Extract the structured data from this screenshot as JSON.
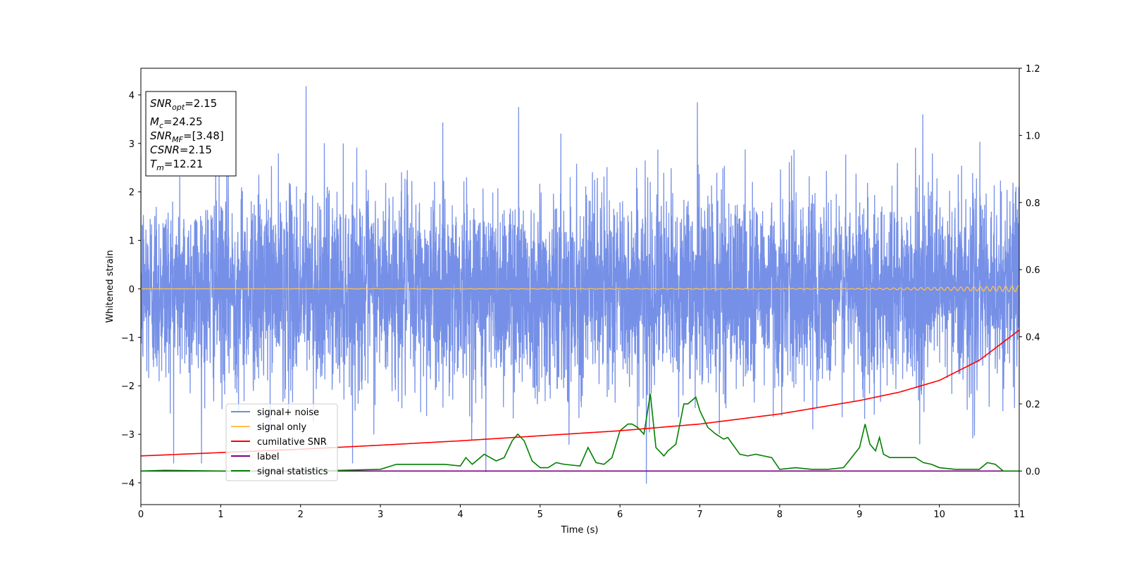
{
  "chart_data": {
    "type": "line",
    "xlabel": "Time (s)",
    "ylabel": "Whitened strain",
    "xlim": [
      0,
      11
    ],
    "ylim_left": [
      -4.45,
      4.55
    ],
    "ylim_right": [
      -0.1,
      1.2
    ],
    "xticks": [
      "0",
      "1",
      "2",
      "3",
      "4",
      "5",
      "6",
      "7",
      "8",
      "9",
      "10",
      "11"
    ],
    "yticks_left": [
      "4",
      "3",
      "2",
      "1",
      "0",
      "−1",
      "−2",
      "−3",
      "−4"
    ],
    "yticks_right": [
      "1.2",
      "1.0",
      "0.8",
      "0.6",
      "0.4",
      "0.2",
      "0.0"
    ],
    "info_box": {
      "snr_opt": {
        "base": "SNR",
        "sub": "opt",
        "value": "=2.15"
      },
      "mc": {
        "base": "M",
        "sub": "c",
        "value": "=24.25"
      },
      "snr_mf": {
        "base": "SNR",
        "sub": "MF",
        "value": "=[3.48]"
      },
      "csnr": {
        "base": "CSNR",
        "sub": "",
        "value": "=2.15"
      },
      "tm": {
        "base": "T",
        "sub": "m",
        "value": "=12.21"
      }
    },
    "legend": {
      "placement": "lower-left",
      "entries": [
        {
          "label": "signal+ noise",
          "color": "#6f8ae6"
        },
        {
          "label": "signal only",
          "color": "#ffc04d"
        },
        {
          "label": "cumilative SNR",
          "color": "#ff0000"
        },
        {
          "label": "label",
          "color": "#800080"
        },
        {
          "label": "signal statistics",
          "color": "#008000"
        }
      ]
    },
    "series": [
      {
        "name": "signal+ noise",
        "axis": "left",
        "kind": "noise",
        "std": 1.0,
        "color": "#6f8ae6",
        "notable_peaks": [
          {
            "x": 2.07,
            "y": 4.18
          },
          {
            "x": 6.97,
            "y": 3.85
          },
          {
            "x": 4.73,
            "y": 3.75
          },
          {
            "x": 6.33,
            "y": -4.02
          },
          {
            "x": 4.32,
            "y": -3.78
          }
        ]
      },
      {
        "name": "signal only",
        "axis": "left",
        "color": "#ffc04d",
        "x": [
          0,
          9.5,
          11
        ],
        "y": [
          0,
          0,
          0
        ],
        "envelope": [
          [
            0,
            0.0
          ],
          [
            9.0,
            0.01
          ],
          [
            10.0,
            0.03
          ],
          [
            11.0,
            0.06
          ]
        ]
      },
      {
        "name": "cumilative SNR",
        "axis": "right",
        "color": "#ff0000",
        "x": [
          0,
          1,
          2,
          3,
          4,
          5,
          6,
          7,
          8,
          8.5,
          9,
          9.5,
          10,
          10.5,
          11
        ],
        "y": [
          0.045,
          0.055,
          0.065,
          0.077,
          0.09,
          0.105,
          0.12,
          0.14,
          0.17,
          0.19,
          0.21,
          0.235,
          0.27,
          0.33,
          0.42
        ]
      },
      {
        "name": "label",
        "axis": "right",
        "color": "#800080",
        "x": [
          0,
          11
        ],
        "y": [
          0.0,
          0.0
        ]
      },
      {
        "name": "signal statistics",
        "axis": "right",
        "color": "#008000",
        "x": [
          0,
          0.3,
          1.0,
          2.0,
          2.5,
          3.0,
          3.2,
          3.5,
          3.8,
          4.0,
          4.07,
          4.15,
          4.3,
          4.45,
          4.55,
          4.65,
          4.72,
          4.8,
          4.9,
          5.0,
          5.1,
          5.2,
          5.3,
          5.5,
          5.6,
          5.7,
          5.8,
          5.9,
          6.0,
          6.1,
          6.15,
          6.22,
          6.3,
          6.38,
          6.45,
          6.55,
          6.6,
          6.7,
          6.8,
          6.85,
          6.9,
          6.95,
          7.0,
          7.1,
          7.2,
          7.3,
          7.35,
          7.5,
          7.6,
          7.7,
          7.8,
          7.9,
          8.0,
          8.2,
          8.4,
          8.6,
          8.8,
          8.9,
          9.0,
          9.07,
          9.13,
          9.2,
          9.25,
          9.3,
          9.38,
          9.5,
          9.7,
          9.8,
          9.9,
          10.0,
          10.2,
          10.5,
          10.6,
          10.7,
          10.8,
          10.9,
          11.0
        ],
        "y": [
          0.0,
          0.002,
          0.0,
          -0.001,
          0.002,
          0.005,
          0.02,
          0.02,
          0.02,
          0.015,
          0.04,
          0.02,
          0.05,
          0.03,
          0.04,
          0.09,
          0.11,
          0.09,
          0.03,
          0.01,
          0.01,
          0.025,
          0.02,
          0.015,
          0.07,
          0.025,
          0.02,
          0.04,
          0.12,
          0.14,
          0.14,
          0.13,
          0.11,
          0.23,
          0.07,
          0.045,
          0.06,
          0.08,
          0.2,
          0.2,
          0.21,
          0.22,
          0.18,
          0.13,
          0.11,
          0.095,
          0.1,
          0.05,
          0.045,
          0.05,
          0.045,
          0.04,
          0.005,
          0.01,
          0.005,
          0.005,
          0.01,
          0.04,
          0.07,
          0.14,
          0.08,
          0.06,
          0.1,
          0.05,
          0.04,
          0.04,
          0.04,
          0.025,
          0.02,
          0.01,
          0.005,
          0.005,
          0.025,
          0.02,
          0.0,
          0.0,
          0.0
        ]
      }
    ]
  }
}
